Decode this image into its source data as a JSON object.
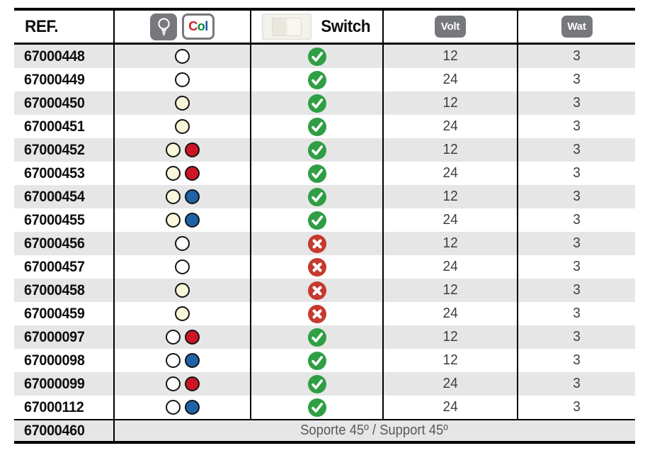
{
  "colors": {
    "row_alt_bg": "#e6e6e6",
    "badge_gray": "#77787b",
    "check_green": "#2f9e44",
    "cross_red": "#c5392e",
    "dot_white": "#ffffff",
    "dot_cream": "#faf6da",
    "dot_red": "#cc1626",
    "dot_blue": "#1f62a7",
    "number_text": "#3e3e40",
    "note_text": "#58595b",
    "col_c_red": "#d42027",
    "col_o_green": "#008a3c",
    "col_l_blue": "#1d4f9f"
  },
  "header": {
    "ref_label": "REF.",
    "lamp_icon": "bulb-icon",
    "col_badge": {
      "c": "C",
      "o": "o",
      "l": "l"
    },
    "switch_label": "Switch",
    "volt_label": "Volt",
    "wat_label": "Wat"
  },
  "rows": [
    {
      "ref": "67000448",
      "colors": [
        "white"
      ],
      "switch": true,
      "volt": "12",
      "wat": "3"
    },
    {
      "ref": "67000449",
      "colors": [
        "white"
      ],
      "switch": true,
      "volt": "24",
      "wat": "3"
    },
    {
      "ref": "67000450",
      "colors": [
        "cream"
      ],
      "switch": true,
      "volt": "12",
      "wat": "3"
    },
    {
      "ref": "67000451",
      "colors": [
        "cream"
      ],
      "switch": true,
      "volt": "24",
      "wat": "3"
    },
    {
      "ref": "67000452",
      "colors": [
        "cream",
        "red"
      ],
      "switch": true,
      "volt": "12",
      "wat": "3"
    },
    {
      "ref": "67000453",
      "colors": [
        "cream",
        "red"
      ],
      "switch": true,
      "volt": "24",
      "wat": "3"
    },
    {
      "ref": "67000454",
      "colors": [
        "cream",
        "blue"
      ],
      "switch": true,
      "volt": "12",
      "wat": "3"
    },
    {
      "ref": "67000455",
      "colors": [
        "cream",
        "blue"
      ],
      "switch": true,
      "volt": "24",
      "wat": "3"
    },
    {
      "ref": "67000456",
      "colors": [
        "white"
      ],
      "switch": false,
      "volt": "12",
      "wat": "3"
    },
    {
      "ref": "67000457",
      "colors": [
        "white"
      ],
      "switch": false,
      "volt": "24",
      "wat": "3"
    },
    {
      "ref": "67000458",
      "colors": [
        "cream"
      ],
      "switch": false,
      "volt": "12",
      "wat": "3"
    },
    {
      "ref": "67000459",
      "colors": [
        "cream"
      ],
      "switch": false,
      "volt": "24",
      "wat": "3"
    },
    {
      "ref": "67000097",
      "colors": [
        "white",
        "red"
      ],
      "switch": true,
      "volt": "12",
      "wat": "3"
    },
    {
      "ref": "67000098",
      "colors": [
        "white",
        "blue"
      ],
      "switch": true,
      "volt": "12",
      "wat": "3"
    },
    {
      "ref": "67000099",
      "colors": [
        "white",
        "red"
      ],
      "switch": true,
      "volt": "24",
      "wat": "3"
    },
    {
      "ref": "67000112",
      "colors": [
        "white",
        "blue"
      ],
      "switch": true,
      "volt": "24",
      "wat": "3"
    }
  ],
  "footer_row": {
    "ref": "67000460",
    "note": "Soporte 45º / Support 45º"
  }
}
